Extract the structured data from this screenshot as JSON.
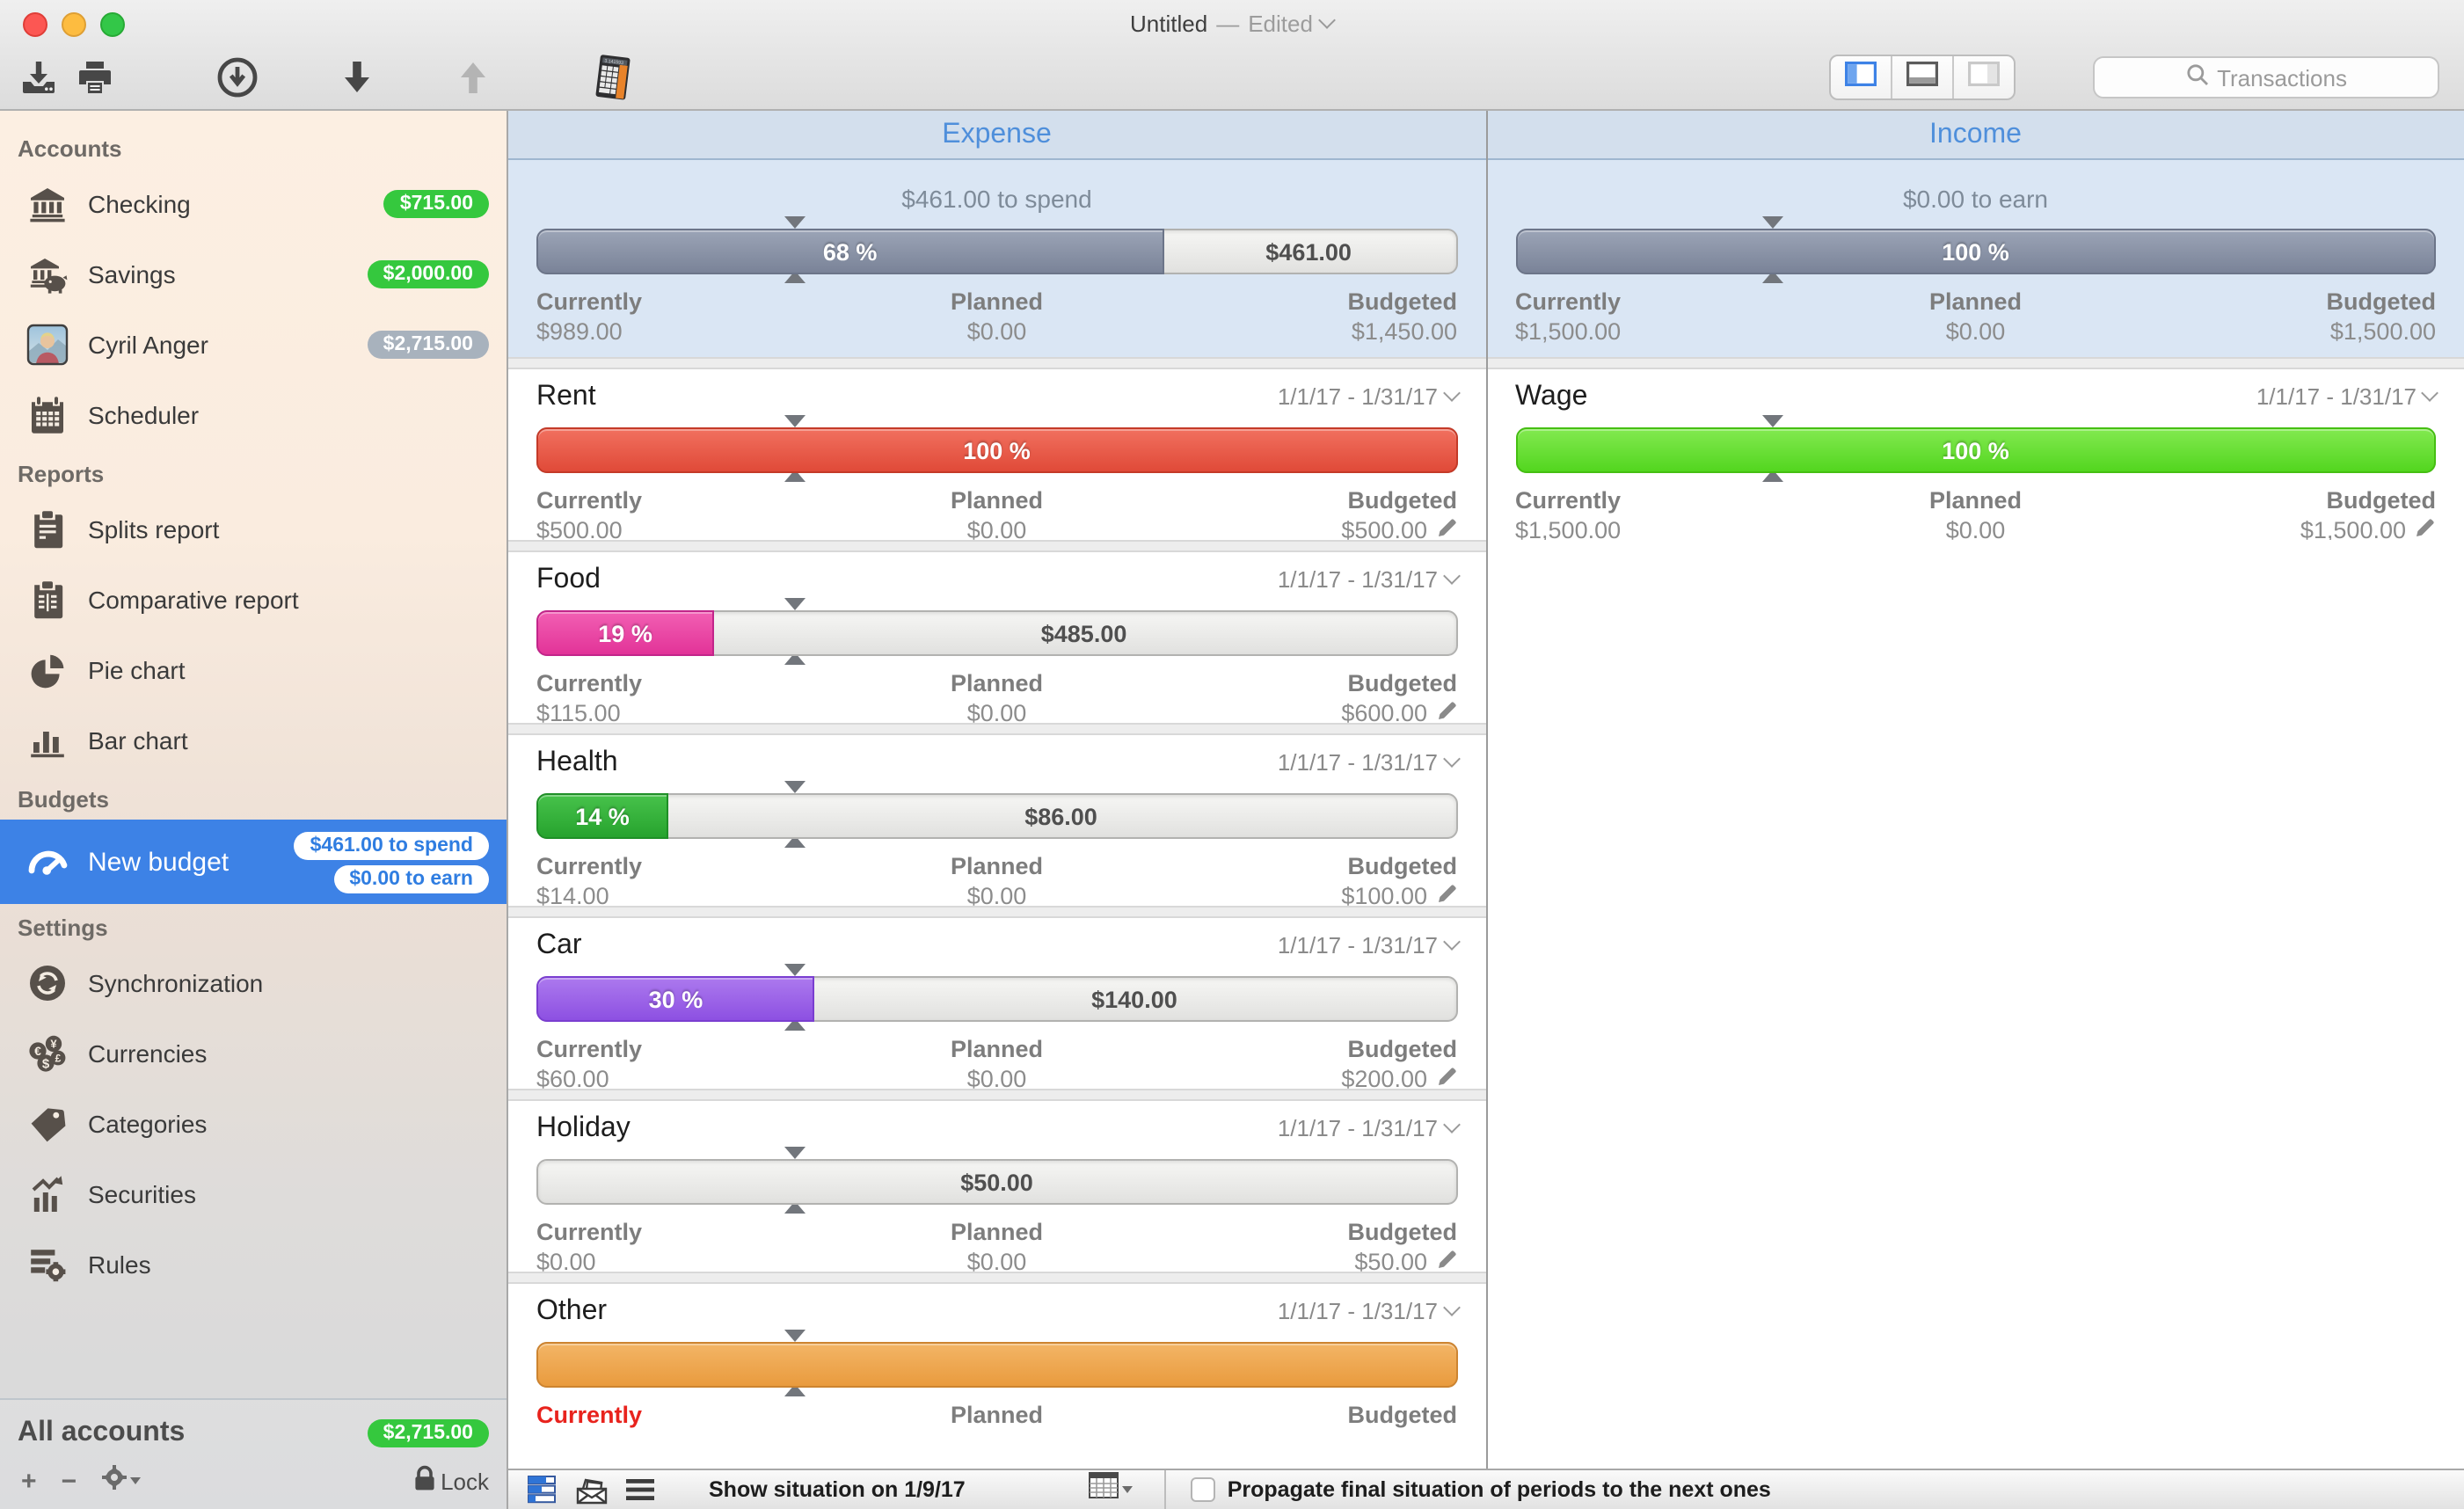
{
  "window": {
    "title": "Untitled",
    "separator": "—",
    "edited": "Edited"
  },
  "toolbar": {
    "search_placeholder": "Transactions"
  },
  "labels": {
    "currently": "Currently",
    "planned": "Planned",
    "budgeted": "Budgeted"
  },
  "sidebar": {
    "sections": [
      {
        "title": "Accounts",
        "items": [
          {
            "label": "Checking",
            "badge": "$715.00"
          },
          {
            "label": "Savings",
            "badge": "$2,000.00"
          },
          {
            "label": "Cyril Anger",
            "badge": "$2,715.00"
          },
          {
            "label": "Scheduler",
            "badge": ""
          }
        ]
      },
      {
        "title": "Reports",
        "items": [
          {
            "label": "Splits report"
          },
          {
            "label": "Comparative report"
          },
          {
            "label": "Pie chart"
          },
          {
            "label": "Bar chart"
          }
        ]
      },
      {
        "title": "Budgets",
        "items": [
          {
            "label": "New budget",
            "badges": [
              "$461.00 to spend",
              "$0.00 to earn"
            ]
          }
        ]
      },
      {
        "title": "Settings",
        "items": [
          {
            "label": "Synchronization"
          },
          {
            "label": "Currencies"
          },
          {
            "label": "Categories"
          },
          {
            "label": "Securities"
          },
          {
            "label": "Rules"
          }
        ]
      }
    ],
    "footer": {
      "all_accounts": "All accounts",
      "total": "$2,715.00",
      "lock": "Lock"
    }
  },
  "expense": {
    "title": "Expense",
    "subtitle": "$461.00 to spend",
    "summary": {
      "percent": 68,
      "percent_label": "68 %",
      "remaining": "$461.00",
      "currently": "$989.00",
      "planned": "$0.00",
      "budgeted": "$1,450.00"
    },
    "rows": [
      {
        "name": "Rent",
        "period": "1/1/17 - 1/31/17",
        "percent": 100,
        "percent_label": "100 %",
        "remaining": "",
        "currently": "$500.00",
        "planned": "$0.00",
        "budgeted": "$500.00",
        "color_top": "#f1705f",
        "color_bottom": "#e04a38",
        "border": "#c43a28",
        "currently_red": false
      },
      {
        "name": "Food",
        "period": "1/1/17 - 1/31/17",
        "percent": 19,
        "percent_label": "19 %",
        "remaining": "$485.00",
        "currently": "$115.00",
        "planned": "$0.00",
        "budgeted": "$600.00",
        "color_top": "#f25fb3",
        "color_bottom": "#e23398",
        "border": "#c2258a",
        "currently_red": false
      },
      {
        "name": "Health",
        "period": "1/1/17 - 1/31/17",
        "percent": 14,
        "percent_label": "14 %",
        "remaining": "$86.00",
        "currently": "$14.00",
        "planned": "$0.00",
        "budgeted": "$100.00",
        "color_top": "#47c24b",
        "color_bottom": "#27a32e",
        "border": "#1f8f27",
        "currently_red": false
      },
      {
        "name": "Car",
        "period": "1/1/17 - 1/31/17",
        "percent": 30,
        "percent_label": "30 %",
        "remaining": "$140.00",
        "currently": "$60.00",
        "planned": "$0.00",
        "budgeted": "$200.00",
        "color_top": "#ac79ee",
        "color_bottom": "#8d50e2",
        "border": "#7a3ed0",
        "currently_red": false
      },
      {
        "name": "Holiday",
        "period": "1/1/17 - 1/31/17",
        "percent": 0,
        "percent_label": "",
        "remaining": "$50.00",
        "currently": "$0.00",
        "planned": "$0.00",
        "budgeted": "$50.00",
        "color_top": "",
        "color_bottom": "",
        "border": "",
        "currently_red": false
      },
      {
        "name": "Other",
        "period": "1/1/17 - 1/31/17",
        "percent": 100,
        "percent_label": "",
        "remaining": "",
        "currently": "",
        "planned": "",
        "budgeted": "",
        "color_top": "#f3b566",
        "color_bottom": "#e99b3e",
        "border": "#cd8430",
        "currently_red": true
      }
    ]
  },
  "income": {
    "title": "Income",
    "subtitle": "$0.00 to earn",
    "summary": {
      "percent": 100,
      "percent_label": "100 %",
      "remaining": "",
      "currently": "$1,500.00",
      "planned": "$0.00",
      "budgeted": "$1,500.00"
    },
    "rows": [
      {
        "name": "Wage",
        "period": "1/1/17 - 1/31/17",
        "percent": 100,
        "percent_label": "100 %",
        "remaining": "",
        "currently": "$1,500.00",
        "planned": "$0.00",
        "budgeted": "$1,500.00",
        "color_top": "#82e950",
        "color_bottom": "#53d61f",
        "border": "#45bf12",
        "currently_red": false
      }
    ]
  },
  "statusbar": {
    "show_situation": "Show situation on 1/9/17",
    "propagate": "Propagate final situation of periods to the next ones"
  }
}
